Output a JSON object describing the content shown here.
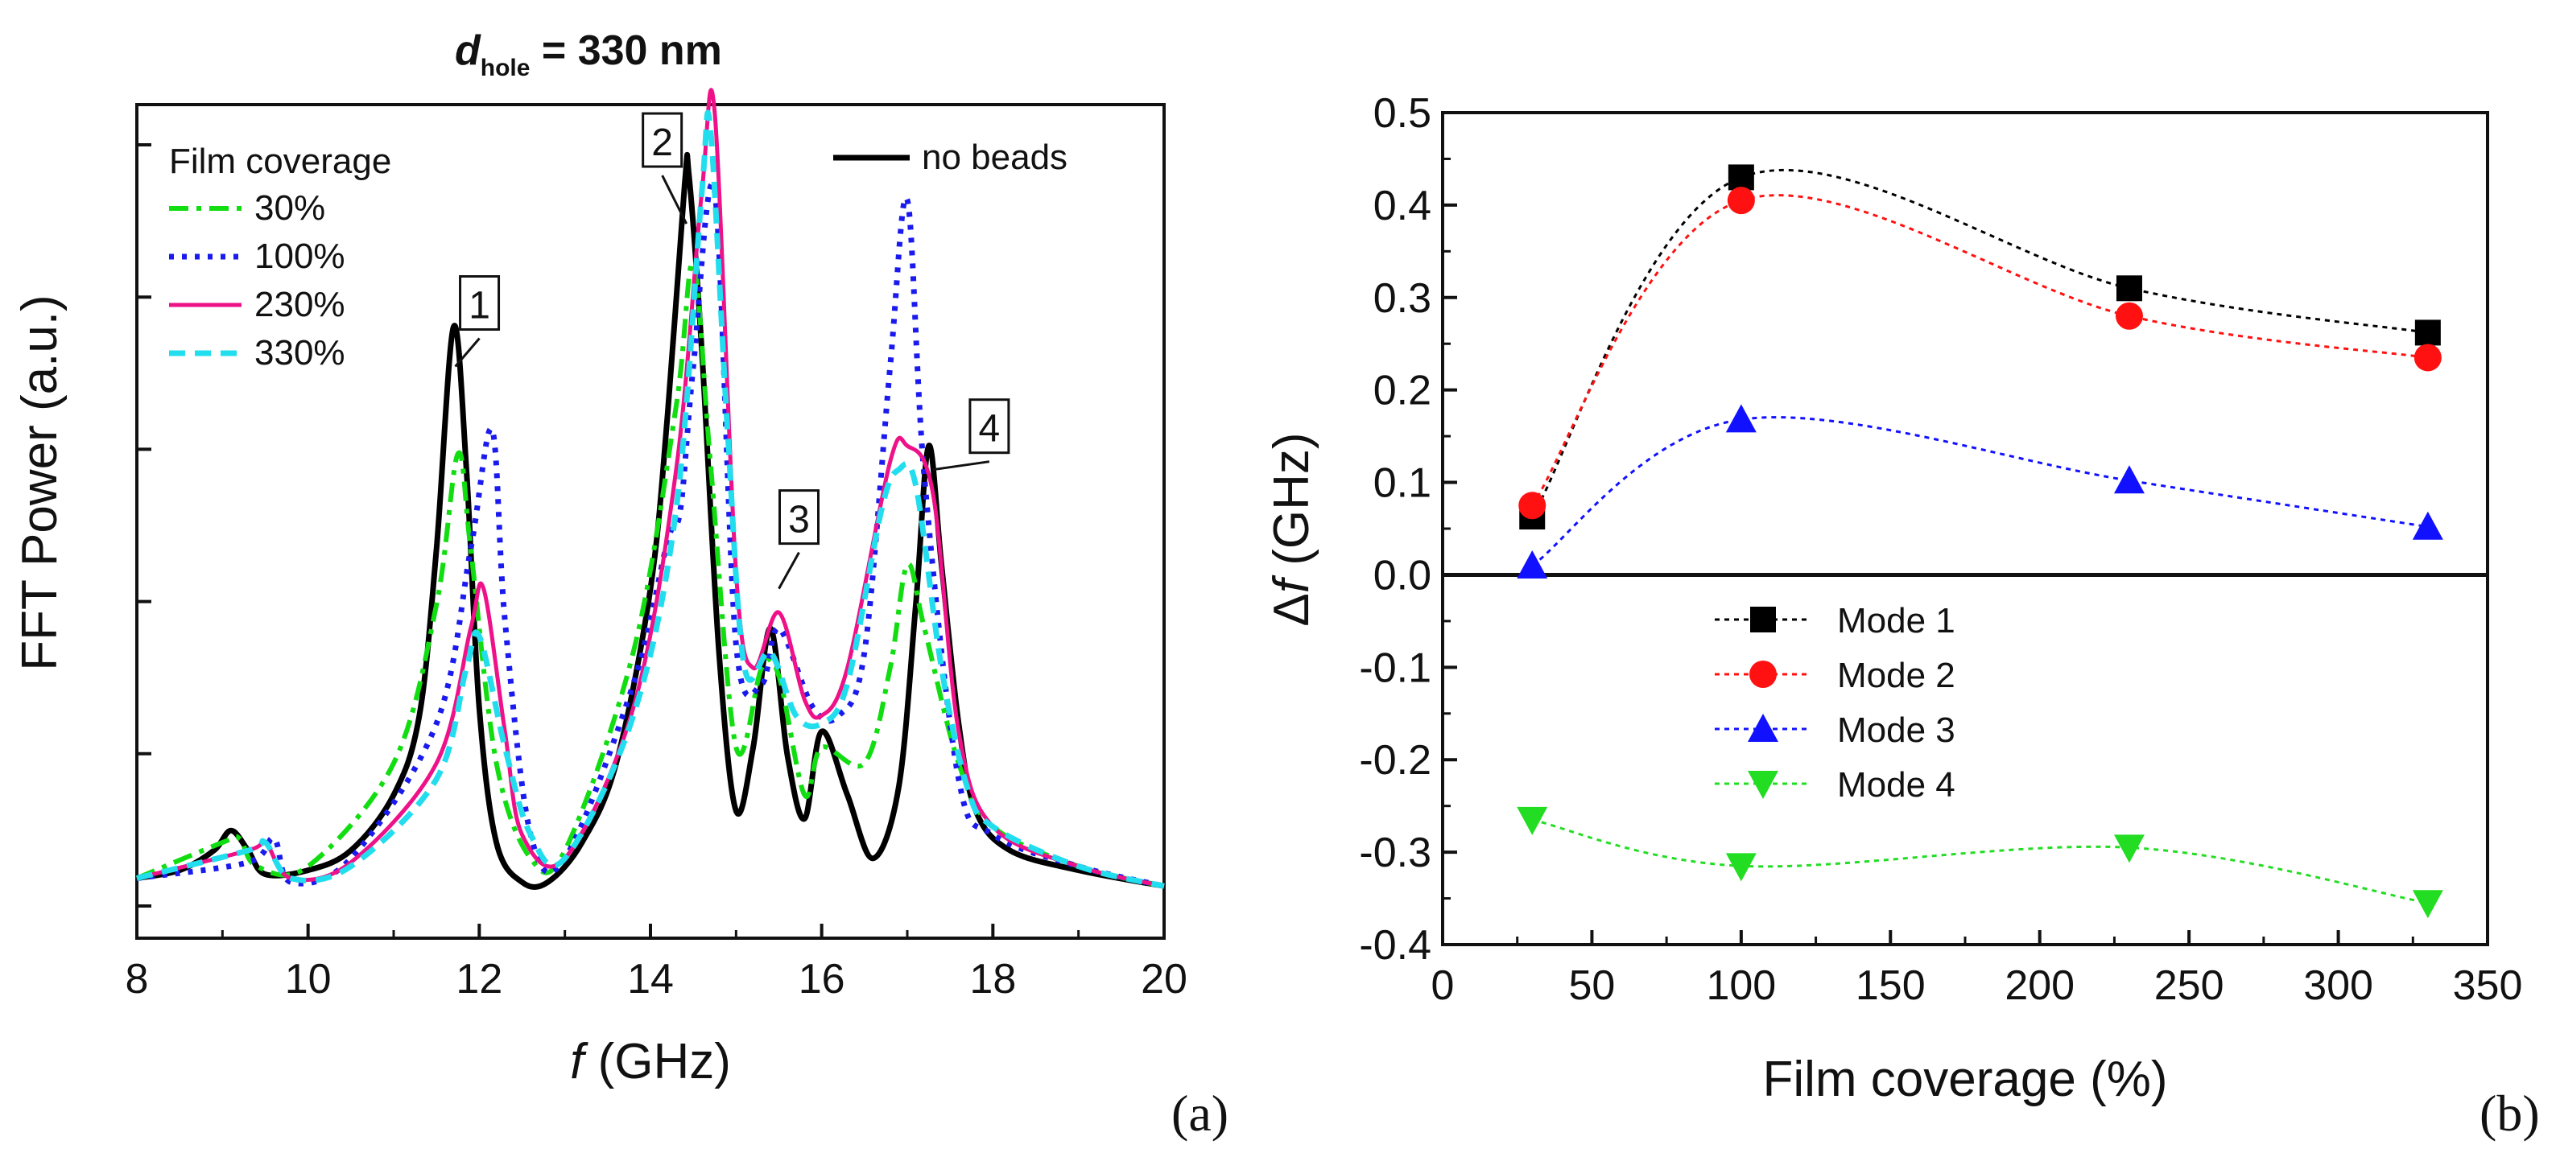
{
  "chart_data": [
    {
      "panel": "(a)",
      "type": "line",
      "title": {
        "main": "d",
        "sub": "hole",
        "rest": " = 330 nm"
      },
      "xlabel": {
        "italic": "f",
        "rest": " (GHz)"
      },
      "ylabel": "FFT Power (a.u.)",
      "xlim": [
        8,
        20
      ],
      "xticks": [
        "8",
        "10",
        "12",
        "14",
        "16",
        "18",
        "20"
      ],
      "ylim": [
        0,
        10
      ],
      "yticks_count": 5,
      "legend_title": "Film coverage",
      "series": [
        {
          "name": "no beads",
          "color": "#000000",
          "dash": "",
          "width": 7,
          "x": [
            8.0,
            8.5,
            8.9,
            9.1,
            9.3,
            9.5,
            10.0,
            10.5,
            11.0,
            11.3,
            11.5,
            11.7,
            11.85,
            12.0,
            12.2,
            12.5,
            12.8,
            13.2,
            13.6,
            14.0,
            14.2,
            14.4,
            14.45,
            14.6,
            14.8,
            15.0,
            15.2,
            15.4,
            15.6,
            15.8,
            16.0,
            16.3,
            16.6,
            16.9,
            17.1,
            17.25,
            17.4,
            17.6,
            17.8,
            18.2,
            19.0,
            20.0
          ],
          "y": [
            0.35,
            0.45,
            0.7,
            0.95,
            0.7,
            0.4,
            0.45,
            0.7,
            1.4,
            2.4,
            4.5,
            7.3,
            5.5,
            2.5,
            0.8,
            0.3,
            0.3,
            0.8,
            1.8,
            4.0,
            6.2,
            9.1,
            9.2,
            7.0,
            3.2,
            1.2,
            2.0,
            3.5,
            1.9,
            1.1,
            2.2,
            1.4,
            0.6,
            1.5,
            3.8,
            5.8,
            4.3,
            2.3,
            1.2,
            0.7,
            0.45,
            0.25
          ]
        },
        {
          "name": "30%",
          "color": "#11dd11",
          "dash": "24 10 6 10",
          "width": 6,
          "x": [
            8.0,
            9.0,
            9.2,
            9.4,
            10.0,
            11.0,
            11.5,
            11.75,
            11.9,
            12.2,
            12.6,
            13.0,
            13.8,
            14.3,
            14.5,
            14.7,
            15.0,
            15.3,
            15.5,
            15.8,
            16.0,
            16.5,
            16.8,
            17.0,
            17.2,
            17.6,
            18.0,
            19.0,
            20.0
          ],
          "y": [
            0.35,
            0.8,
            0.85,
            0.5,
            0.5,
            1.8,
            3.8,
            5.7,
            4.5,
            1.8,
            0.6,
            0.7,
            3.2,
            6.3,
            8.1,
            5.6,
            2.0,
            3.0,
            2.9,
            1.4,
            2.0,
            1.8,
            3.0,
            4.3,
            3.5,
            1.8,
            1.0,
            0.5,
            0.25
          ]
        },
        {
          "name": "100%",
          "color": "#1a1aee",
          "dash": "6 10",
          "width": 7,
          "x": [
            8.0,
            9.3,
            9.6,
            9.8,
            10.5,
            11.5,
            11.9,
            12.15,
            12.3,
            12.6,
            13.0,
            13.8,
            14.2,
            14.35,
            14.5,
            14.75,
            15.0,
            15.3,
            15.5,
            15.9,
            16.2,
            16.5,
            16.8,
            17.0,
            17.2,
            17.6,
            18.0,
            19.0,
            20.0
          ],
          "y": [
            0.35,
            0.55,
            0.85,
            0.3,
            0.6,
            2.3,
            4.5,
            6.0,
            3.6,
            0.9,
            0.6,
            2.8,
            4.6,
            5.0,
            6.8,
            9.0,
            3.3,
            2.8,
            3.5,
            2.5,
            2.4,
            3.2,
            6.8,
            8.9,
            5.4,
            1.6,
            0.9,
            0.5,
            0.25
          ]
        },
        {
          "name": "230%",
          "color": "#ee1188",
          "dash": "",
          "width": 5,
          "x": [
            8.0,
            9.3,
            9.5,
            9.8,
            10.5,
            11.5,
            11.9,
            12.05,
            12.3,
            12.5,
            13.0,
            13.8,
            14.3,
            14.6,
            14.75,
            15.0,
            15.2,
            15.5,
            15.8,
            16.0,
            16.3,
            16.8,
            17.0,
            17.3,
            17.6,
            18.0,
            19.0,
            20.0
          ],
          "y": [
            0.35,
            0.7,
            0.8,
            0.35,
            0.55,
            1.8,
            3.5,
            4.0,
            2.2,
            0.9,
            0.6,
            2.5,
            5.5,
            9.0,
            10.0,
            4.2,
            3.0,
            3.7,
            2.6,
            2.4,
            3.0,
            5.6,
            5.8,
            5.2,
            2.2,
            1.0,
            0.5,
            0.25
          ]
        },
        {
          "name": "330%",
          "color": "#22ddee",
          "dash": "20 12",
          "width": 7,
          "x": [
            8.0,
            9.3,
            9.5,
            9.8,
            10.5,
            11.5,
            11.85,
            12.0,
            12.3,
            12.6,
            13.0,
            13.8,
            14.3,
            14.6,
            14.7,
            14.9,
            15.1,
            15.4,
            15.7,
            16.0,
            16.3,
            16.7,
            16.9,
            17.1,
            17.4,
            17.7,
            18.0,
            19.0,
            20.0
          ],
          "y": [
            0.35,
            0.7,
            0.8,
            0.35,
            0.5,
            1.6,
            3.0,
            3.4,
            2.0,
            0.9,
            0.6,
            2.4,
            5.0,
            9.0,
            9.8,
            6.0,
            3.0,
            3.2,
            2.4,
            2.3,
            2.8,
            5.0,
            5.5,
            5.3,
            3.0,
            1.5,
            1.0,
            0.5,
            0.25
          ]
        }
      ],
      "callouts": [
        {
          "label": "1",
          "x": 11.72,
          "y": 6.8
        },
        {
          "label": "2",
          "x": 14.42,
          "y": 8.6
        },
        {
          "label": "3",
          "x": 15.5,
          "y": 4.0
        },
        {
          "label": "4",
          "x": 17.3,
          "y": 5.5
        }
      ]
    },
    {
      "panel": "(b)",
      "type": "scatter",
      "xlabel": "Film coverage (%)",
      "ylabel": {
        "pre": "Δ",
        "italic": "f",
        "rest": " (GHz)"
      },
      "xlim": [
        0,
        350
      ],
      "xticks": [
        0,
        50,
        100,
        150,
        200,
        250,
        300,
        350
      ],
      "ylim": [
        -0.4,
        0.5
      ],
      "yticks": [
        "0.5",
        "0.4",
        "0.3",
        "0.2",
        "0.1",
        "0.0",
        "-0.1",
        "-0.2",
        "-0.3",
        "-0.4"
      ],
      "zero_line": true,
      "series": [
        {
          "name": "Mode 1",
          "color": "#000000",
          "marker": "square",
          "x": [
            30,
            100,
            230,
            330
          ],
          "y": [
            0.063,
            0.43,
            0.31,
            0.262
          ]
        },
        {
          "name": "Mode 2",
          "color": "#ff1111",
          "marker": "circle",
          "x": [
            30,
            100,
            230,
            330
          ],
          "y": [
            0.075,
            0.405,
            0.28,
            0.235
          ]
        },
        {
          "name": "Mode 3",
          "color": "#1111ff",
          "marker": "triangle-up",
          "x": [
            30,
            100,
            230,
            330
          ],
          "y": [
            0.01,
            0.168,
            0.102,
            0.052
          ]
        },
        {
          "name": "Mode 4",
          "color": "#22dd22",
          "marker": "triangle-down",
          "x": [
            30,
            100,
            230,
            330
          ],
          "y": [
            -0.265,
            -0.315,
            -0.295,
            -0.355
          ]
        }
      ]
    }
  ]
}
